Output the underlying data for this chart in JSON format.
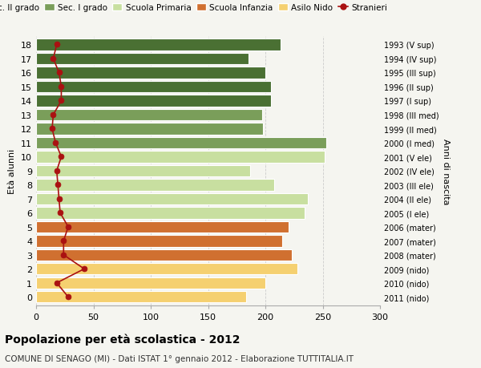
{
  "ages": [
    18,
    17,
    16,
    15,
    14,
    13,
    12,
    11,
    10,
    9,
    8,
    7,
    6,
    5,
    4,
    3,
    2,
    1,
    0
  ],
  "years": [
    "1993 (V sup)",
    "1994 (IV sup)",
    "1995 (III sup)",
    "1996 (II sup)",
    "1997 (I sup)",
    "1998 (III med)",
    "1999 (II med)",
    "2000 (I med)",
    "2001 (V ele)",
    "2002 (IV ele)",
    "2003 (III ele)",
    "2004 (II ele)",
    "2005 (I ele)",
    "2006 (mater)",
    "2007 (mater)",
    "2008 (mater)",
    "2009 (nido)",
    "2010 (nido)",
    "2011 (nido)"
  ],
  "bar_values": [
    213,
    185,
    200,
    205,
    205,
    197,
    198,
    253,
    252,
    187,
    208,
    237,
    234,
    220,
    215,
    223,
    228,
    200,
    183
  ],
  "bar_colors": [
    "#4a7033",
    "#4a7033",
    "#4a7033",
    "#4a7033",
    "#4a7033",
    "#7a9e5a",
    "#7a9e5a",
    "#7a9e5a",
    "#c8dfa0",
    "#c8dfa0",
    "#c8dfa0",
    "#c8dfa0",
    "#c8dfa0",
    "#d07030",
    "#d07030",
    "#d07030",
    "#f5d070",
    "#f5d070",
    "#f5d070"
  ],
  "stranieri": [
    18,
    15,
    20,
    22,
    22,
    15,
    14,
    17,
    22,
    18,
    19,
    20,
    21,
    28,
    24,
    24,
    42,
    18,
    28
  ],
  "stranieri_color": "#aa1111",
  "legend_labels": [
    "Sec. II grado",
    "Sec. I grado",
    "Scuola Primaria",
    "Scuola Infanzia",
    "Asilo Nido",
    "Stranieri"
  ],
  "legend_colors": [
    "#4a7033",
    "#7a9e5a",
    "#c8dfa0",
    "#d07030",
    "#f5d070",
    "#aa1111"
  ],
  "ylabel": "Età alunni",
  "right_label": "Anni di nascita",
  "xlim": [
    0,
    300
  ],
  "xticks": [
    0,
    50,
    100,
    150,
    200,
    250,
    300
  ],
  "title": "Popolazione per età scolastica - 2012",
  "subtitle": "COMUNE DI SENAGO (MI) - Dati ISTAT 1° gennaio 2012 - Elaborazione TUTTITALIA.IT",
  "bg_color": "#f5f5f0",
  "grid_color": "#cccccc",
  "bar_height": 0.82
}
